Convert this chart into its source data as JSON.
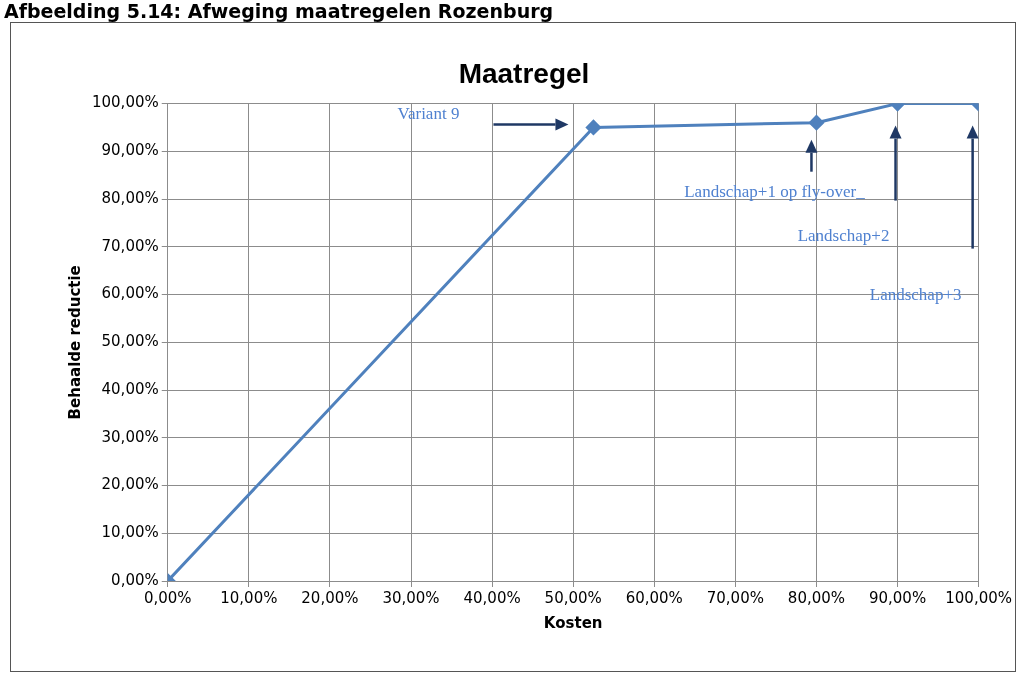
{
  "chart_data": {
    "type": "line",
    "title": "Maatregel",
    "xlabel": "Kosten",
    "ylabel": "Behaalde reductie",
    "x": [
      0,
      52.5,
      80,
      90,
      100
    ],
    "series": [
      {
        "color": "#4f81bd",
        "values": [
          0,
          95,
          96,
          100,
          100
        ]
      }
    ],
    "xlim": [
      0,
      100
    ],
    "ylim": [
      0,
      100
    ],
    "xticks": [
      {
        "value": 0,
        "label": "0,00%"
      },
      {
        "value": 10,
        "label": "10,00%"
      },
      {
        "value": 20,
        "label": "20,00%"
      },
      {
        "value": 30,
        "label": "30,00%"
      },
      {
        "value": 40,
        "label": "40,00%"
      },
      {
        "value": 50,
        "label": "50,00%"
      },
      {
        "value": 60,
        "label": "60,00%"
      },
      {
        "value": 70,
        "label": "70,00%"
      },
      {
        "value": 80,
        "label": "80,00%"
      },
      {
        "value": 90,
        "label": "90,00%"
      },
      {
        "value": 100,
        "label": "100,00%"
      }
    ],
    "yticks": [
      {
        "value": 0,
        "label": "0,00%"
      },
      {
        "value": 10,
        "label": "10,00%"
      },
      {
        "value": 20,
        "label": "20,00%"
      },
      {
        "value": 30,
        "label": "30,00%"
      },
      {
        "value": 40,
        "label": "40,00%"
      },
      {
        "value": 50,
        "label": "50,00%"
      },
      {
        "value": 60,
        "label": "60,00%"
      },
      {
        "value": 70,
        "label": "70,00%"
      },
      {
        "value": 80,
        "label": "80,00%"
      },
      {
        "value": 90,
        "label": "90,00%"
      },
      {
        "value": 100,
        "label": "100,00%"
      }
    ],
    "grid": true,
    "legend": false,
    "marker": "diamond",
    "line_style": "solid",
    "annotations": [
      "Variant 9",
      "Landschap+1 op fly-over_",
      "Landschap+2",
      "Landschap+3",
      "Afbeelding 5.14: Afweging maatregelen Rozenburg"
    ]
  }
}
